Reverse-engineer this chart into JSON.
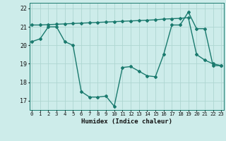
{
  "line1_x": [
    0,
    1,
    2,
    3,
    4,
    5,
    6,
    7,
    8,
    9,
    10,
    11,
    12,
    13,
    14,
    15,
    16,
    17,
    18,
    19,
    20,
    21,
    22,
    23
  ],
  "line1_y": [
    20.2,
    20.35,
    21.0,
    21.0,
    20.2,
    20.0,
    17.5,
    17.2,
    17.2,
    17.25,
    16.7,
    18.8,
    18.85,
    18.6,
    18.35,
    18.3,
    19.5,
    21.1,
    21.1,
    21.8,
    20.9,
    20.9,
    18.9,
    18.9
  ],
  "line2_x": [
    0,
    1,
    2,
    3,
    4,
    5,
    6,
    7,
    8,
    9,
    10,
    11,
    12,
    13,
    14,
    15,
    16,
    17,
    18,
    19,
    20,
    21,
    22,
    23
  ],
  "line2_y": [
    21.1,
    21.1,
    21.12,
    21.14,
    21.16,
    21.18,
    21.2,
    21.22,
    21.24,
    21.26,
    21.28,
    21.3,
    21.32,
    21.34,
    21.36,
    21.38,
    21.42,
    21.44,
    21.46,
    21.5,
    19.5,
    19.2,
    19.0,
    18.9
  ],
  "color": "#1a7a6e",
  "bg_color": "#cdecea",
  "grid_color": "#aed6d2",
  "xlabel": "Humidex (Indice chaleur)",
  "ylim": [
    16.5,
    22.3
  ],
  "xlim": [
    -0.3,
    23.3
  ],
  "yticks": [
    17,
    18,
    19,
    20,
    21,
    22
  ],
  "xticks": [
    0,
    1,
    2,
    3,
    4,
    5,
    6,
    7,
    8,
    9,
    10,
    11,
    12,
    13,
    14,
    15,
    16,
    17,
    18,
    19,
    20,
    21,
    22,
    23
  ],
  "marker": "D",
  "marker_size": 2.0,
  "linewidth": 1.0
}
